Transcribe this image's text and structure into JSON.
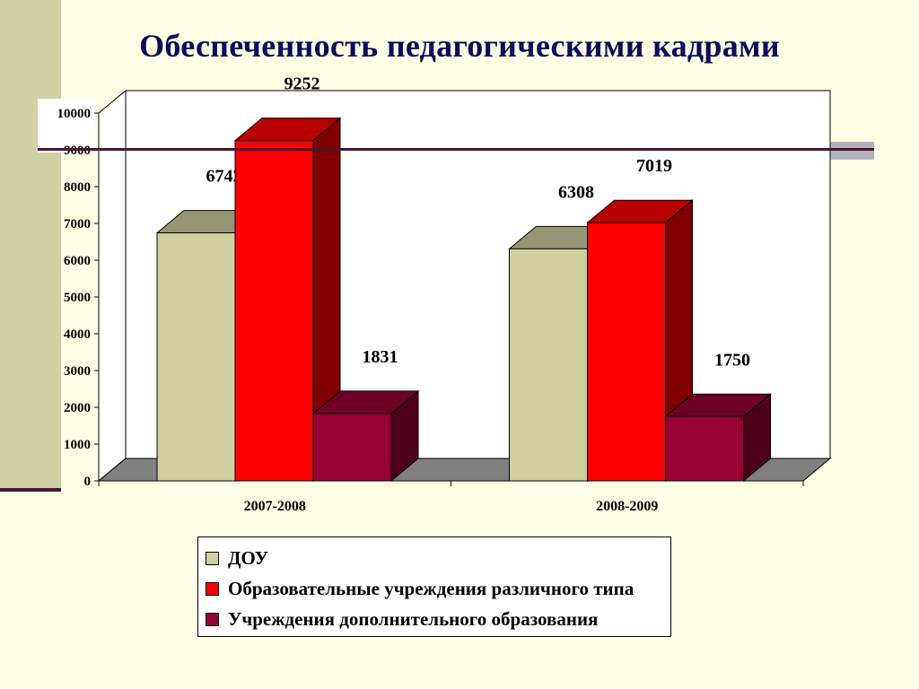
{
  "title": "Обеспеченность педагогическими кадрами",
  "chart_data": {
    "type": "bar",
    "title": "Обеспеченность педагогическими кадрами",
    "categories": [
      "2007-2008",
      "2008-2009"
    ],
    "series": [
      {
        "name": "ДОУ",
        "values": [
          6742,
          6308
        ],
        "color": "#CFCFA0"
      },
      {
        "name": "Образовательные учреждения различного типа",
        "values": [
          9252,
          7019
        ],
        "color": "#FF0000"
      },
      {
        "name": "Учреждения дополнительного образования",
        "values": [
          1831,
          1750
        ],
        "color": "#990033"
      }
    ],
    "ylim": [
      0,
      10000
    ],
    "yticks": [
      "0",
      "1000",
      "2000",
      "3000",
      "4000",
      "5000",
      "6000",
      "7000",
      "8000",
      "9000",
      "10000"
    ],
    "legend_position": "bottom",
    "chart_style": "3d-clustered-column"
  }
}
